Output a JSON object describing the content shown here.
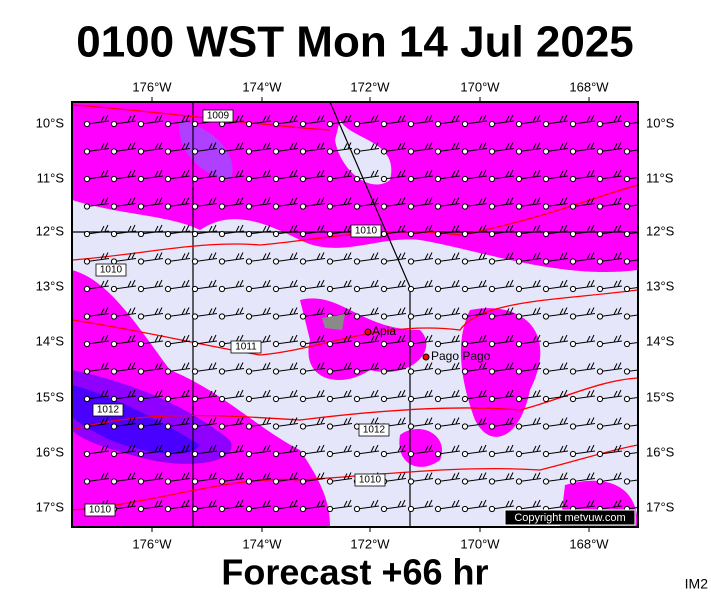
{
  "title": "0100 WST Mon 14 Jul 2025",
  "longitude_labels": [
    "176°W",
    "174°W",
    "172°W",
    "170°W",
    "168°W"
  ],
  "latitude_labels": [
    "10°S",
    "11°S",
    "12°S",
    "13°S",
    "14°S",
    "15°S",
    "16°S",
    "17°S"
  ],
  "isobar_labels": [
    "1009",
    "1010",
    "1010",
    "1011",
    "1012",
    "1012",
    "1010",
    "1010"
  ],
  "places": [
    "Apia",
    "Pago Pago"
  ],
  "copyright": "Copyright metvuw.com",
  "footer": "Forecast +66 hr",
  "image_id": "IM2"
}
